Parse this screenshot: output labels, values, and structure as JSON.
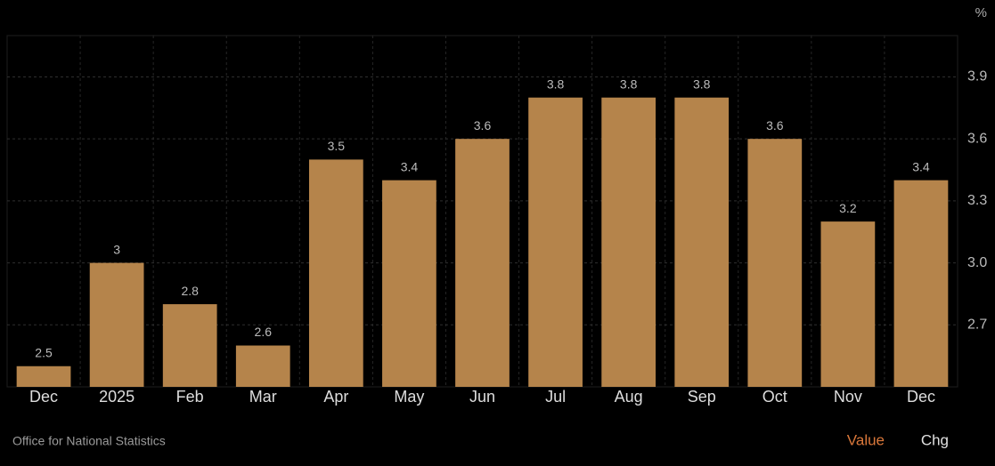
{
  "chart_data": {
    "type": "bar",
    "unit": "%",
    "categories": [
      "Dec",
      "2025",
      "Feb",
      "Mar",
      "Apr",
      "May",
      "Jun",
      "Jul",
      "Aug",
      "Sep",
      "Oct",
      "Nov",
      "Dec"
    ],
    "values": [
      2.5,
      3,
      2.8,
      2.6,
      3.5,
      3.4,
      3.6,
      3.8,
      3.8,
      3.8,
      3.6,
      3.2,
      3.4
    ],
    "color": "#b5844b",
    "ylim": [
      2.4,
      4.1
    ],
    "yticks": [
      2.7,
      {
        "value": 3,
        "label": "3.0"
      },
      3.3,
      3.6,
      3.9
    ],
    "grid": true,
    "source": "Office for National Statistics",
    "tabs": [
      "Value",
      "Chg"
    ]
  }
}
